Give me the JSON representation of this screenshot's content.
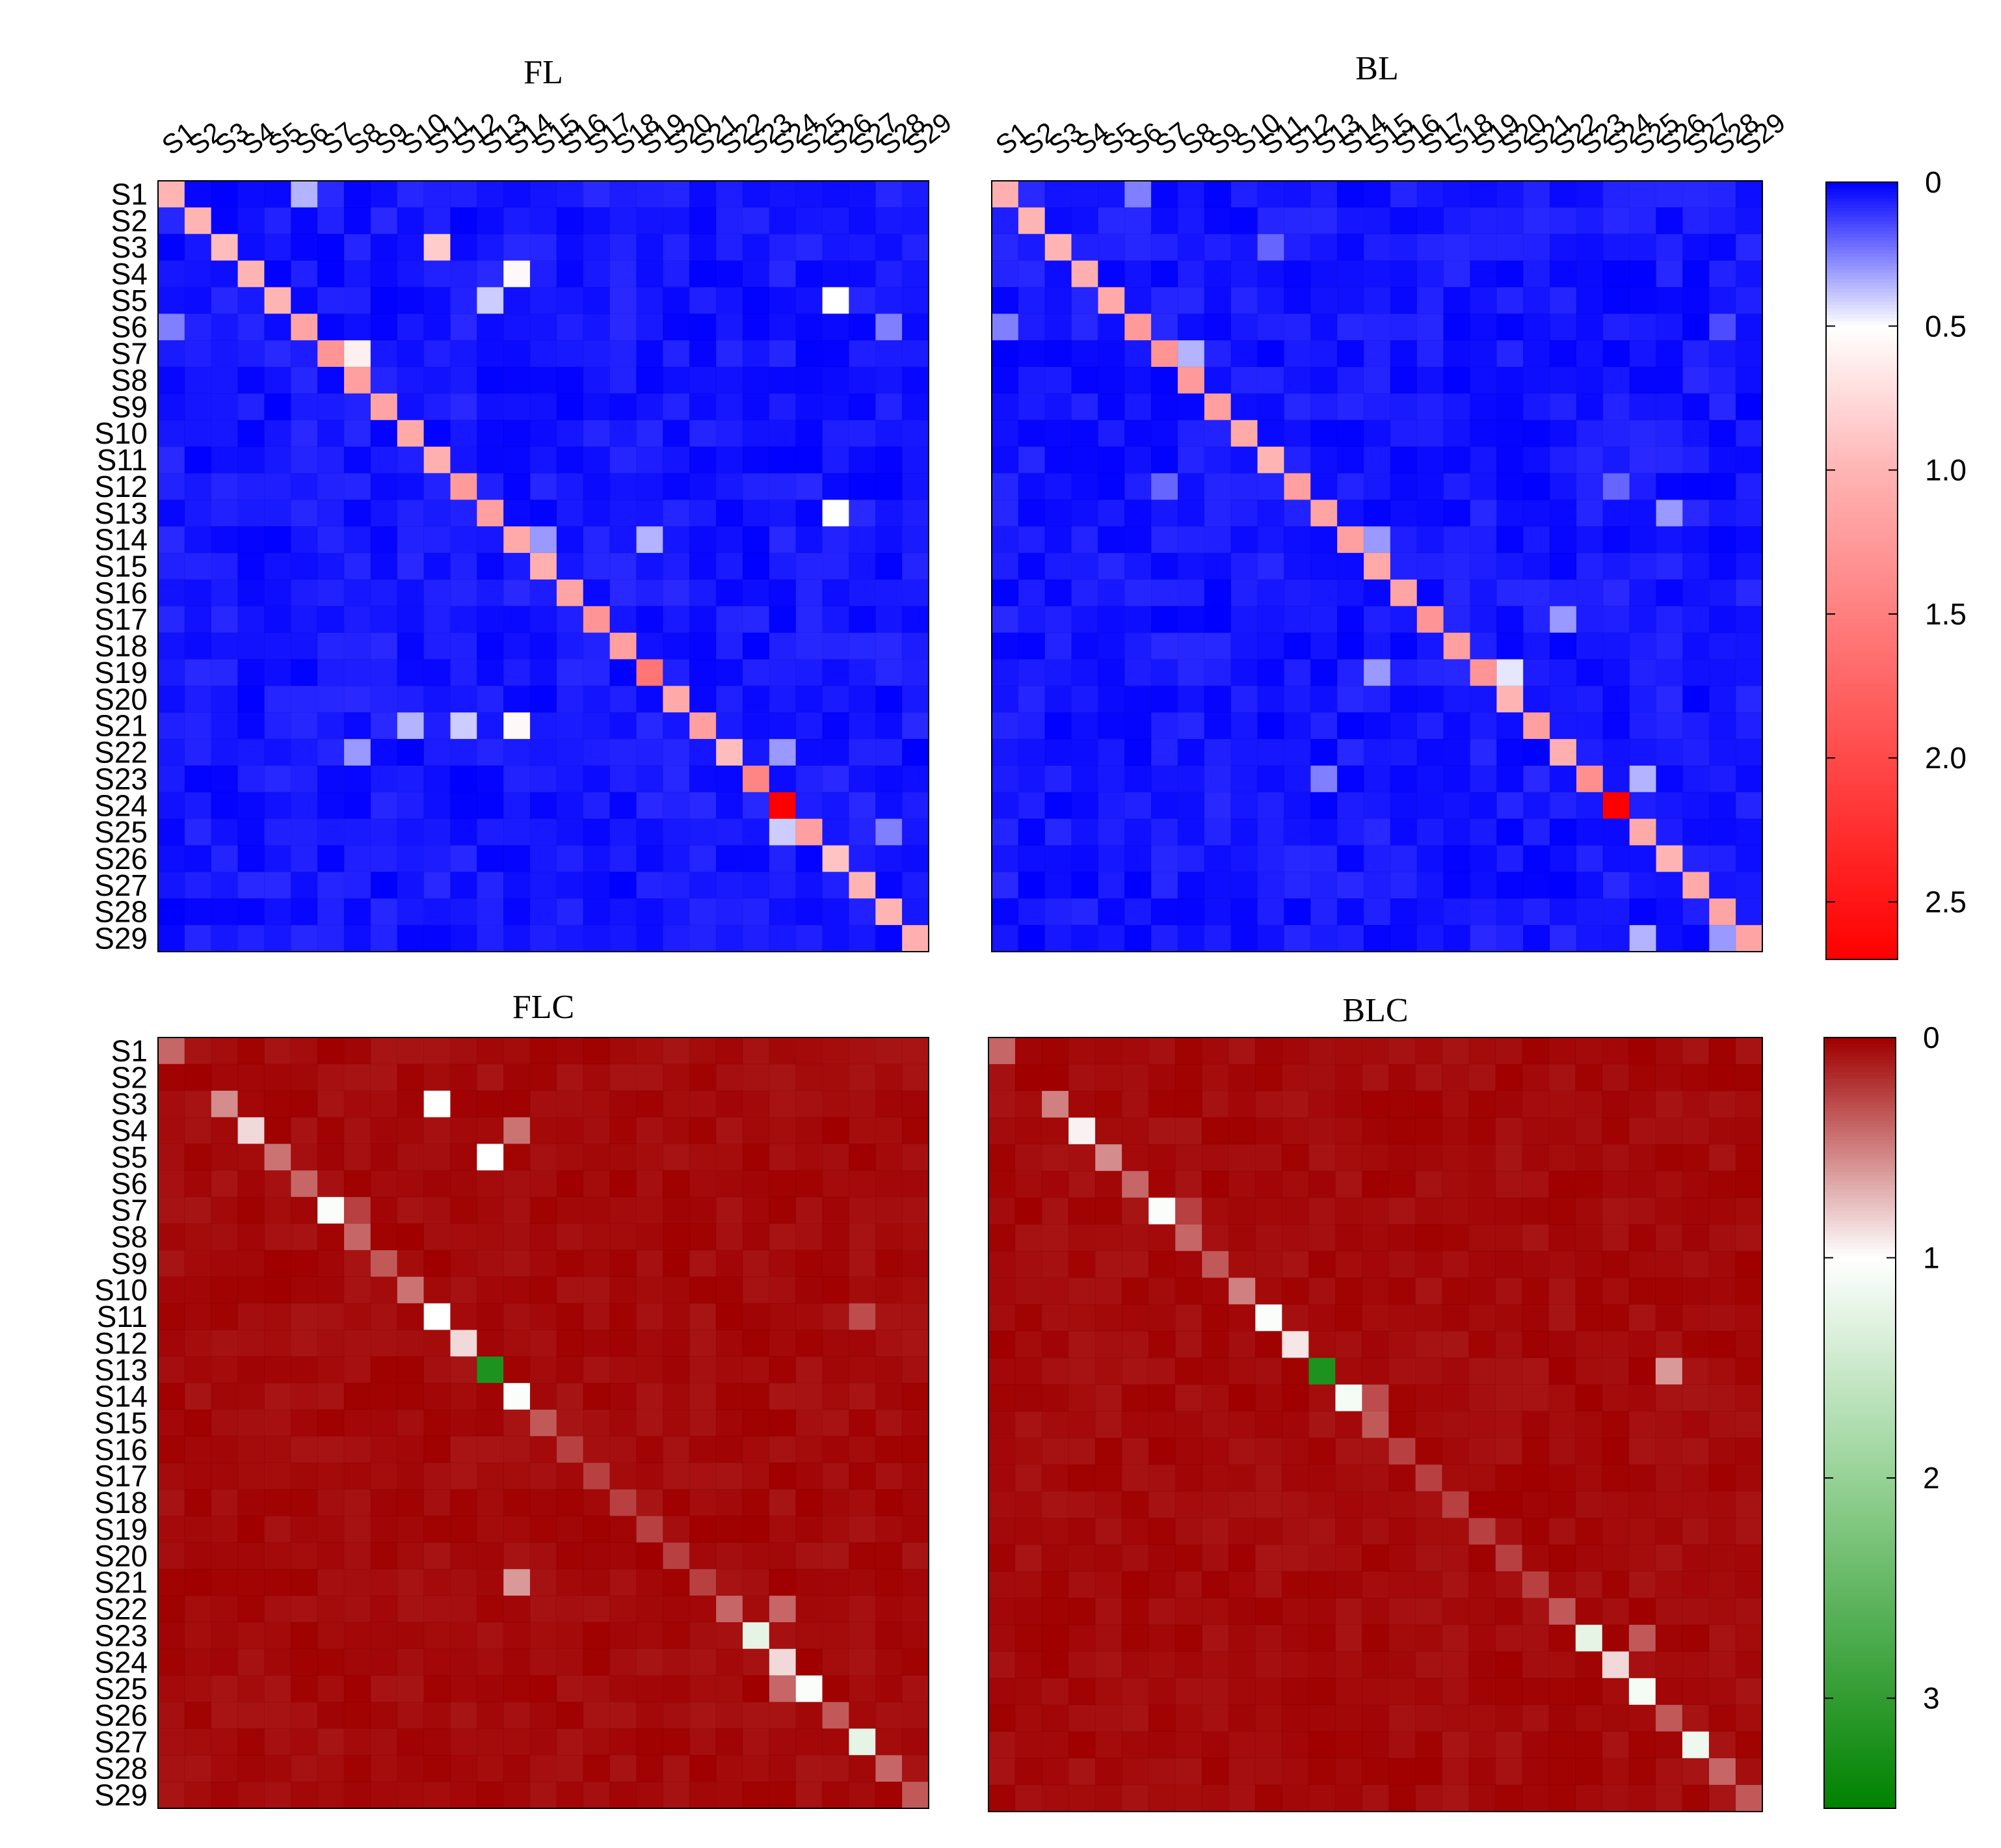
{
  "chart_data": [
    {
      "type": "heatmap",
      "title": "FL",
      "labels": [
        "S1",
        "S2",
        "S3",
        "S4",
        "S5",
        "S6",
        "S7",
        "S8",
        "S9",
        "S10",
        "S11",
        "S12",
        "S13",
        "S14",
        "S15",
        "S16",
        "S17",
        "S18",
        "S19",
        "S20",
        "S21",
        "S22",
        "S23",
        "S24",
        "S25",
        "S26",
        "S27",
        "S28",
        "S29"
      ],
      "show_x_labels": true,
      "colormap": "blue-white-red",
      "range": [
        0,
        2.7
      ],
      "diagonal": [
        1.0,
        1.0,
        0.95,
        1.0,
        1.0,
        1.15,
        1.3,
        1.2,
        1.15,
        1.1,
        1.05,
        1.25,
        1.2,
        1.1,
        1.05,
        1.15,
        1.3,
        1.2,
        1.6,
        1.1,
        1.2,
        0.95,
        1.45,
        2.7,
        1.2,
        0.9,
        1.0,
        1.0,
        1.05
      ],
      "highlights": [
        {
          "row": "S1",
          "col": "S6",
          "value": 0.35
        },
        {
          "row": "S3",
          "col": "S11",
          "value": 0.85
        },
        {
          "row": "S4",
          "col": "S14",
          "value": 0.55
        },
        {
          "row": "S5",
          "col": "S13",
          "value": 0.4
        },
        {
          "row": "S5",
          "col": "S26",
          "value": 0.5
        },
        {
          "row": "S6",
          "col": "S1",
          "value": 0.25
        },
        {
          "row": "S6",
          "col": "S28",
          "value": 0.25
        },
        {
          "row": "S7",
          "col": "S8",
          "value": 0.6
        },
        {
          "row": "S13",
          "col": "S26",
          "value": 0.5
        },
        {
          "row": "S14",
          "col": "S15",
          "value": 0.3
        },
        {
          "row": "S14",
          "col": "S19",
          "value": 0.35
        },
        {
          "row": "S21",
          "col": "S10",
          "value": 0.35
        },
        {
          "row": "S21",
          "col": "S12",
          "value": 0.4
        },
        {
          "row": "S21",
          "col": "S14",
          "value": 0.55
        },
        {
          "row": "S22",
          "col": "S8",
          "value": 0.3
        },
        {
          "row": "S22",
          "col": "S24",
          "value": 0.3
        },
        {
          "row": "S25",
          "col": "S24",
          "value": 0.4
        },
        {
          "row": "S25",
          "col": "S28",
          "value": 0.25
        }
      ],
      "background": 0.0
    },
    {
      "type": "heatmap",
      "title": "BL",
      "labels": [
        "S1",
        "S2",
        "S3",
        "S4",
        "S5",
        "S6",
        "S7",
        "S8",
        "S9",
        "S10",
        "S11",
        "S12",
        "S13",
        "S14",
        "S15",
        "S16",
        "S17",
        "S18",
        "S19",
        "S20",
        "S21",
        "S22",
        "S23",
        "S24",
        "S25",
        "S26",
        "S27",
        "S28",
        "S29"
      ],
      "show_x_labels": true,
      "colormap": "blue-white-red",
      "range": [
        0,
        2.7
      ],
      "diagonal": [
        1.05,
        1.0,
        1.0,
        1.05,
        1.1,
        1.25,
        1.3,
        1.25,
        1.2,
        1.1,
        1.0,
        1.2,
        1.15,
        1.2,
        1.1,
        1.15,
        1.3,
        1.2,
        1.3,
        1.0,
        1.2,
        1.05,
        1.35,
        2.7,
        1.1,
        1.0,
        1.1,
        1.15,
        1.15
      ],
      "highlights": [
        {
          "row": "S1",
          "col": "S6",
          "value": 0.25
        },
        {
          "row": "S3",
          "col": "S11",
          "value": 0.2
        },
        {
          "row": "S6",
          "col": "S1",
          "value": 0.25
        },
        {
          "row": "S6",
          "col": "S28",
          "value": 0.15
        },
        {
          "row": "S7",
          "col": "S8",
          "value": 0.35
        },
        {
          "row": "S12",
          "col": "S7",
          "value": 0.2
        },
        {
          "row": "S12",
          "col": "S24",
          "value": 0.2
        },
        {
          "row": "S13",
          "col": "S26",
          "value": 0.3
        },
        {
          "row": "S14",
          "col": "S15",
          "value": 0.3
        },
        {
          "row": "S17",
          "col": "S22",
          "value": 0.3
        },
        {
          "row": "S19",
          "col": "S15",
          "value": 0.3
        },
        {
          "row": "S19",
          "col": "S20",
          "value": 0.45
        },
        {
          "row": "S23",
          "col": "S13",
          "value": 0.25
        },
        {
          "row": "S23",
          "col": "S25",
          "value": 0.35
        },
        {
          "row": "S29",
          "col": "S25",
          "value": 0.35
        },
        {
          "row": "S29",
          "col": "S28",
          "value": 0.3
        }
      ],
      "background": 0.0
    },
    {
      "type": "heatmap",
      "title": "FLC",
      "labels": [
        "S1",
        "S2",
        "S3",
        "S4",
        "S5",
        "S6",
        "S7",
        "S8",
        "S9",
        "S10",
        "S11",
        "S12",
        "S13",
        "S14",
        "S15",
        "S16",
        "S17",
        "S18",
        "S19",
        "S20",
        "S21",
        "S22",
        "S23",
        "S24",
        "S25",
        "S26",
        "S27",
        "S28",
        "S29"
      ],
      "show_x_labels": false,
      "colormap": "red-white-green",
      "range": [
        0,
        3.5
      ],
      "diagonal": [
        0.4,
        0.0,
        0.55,
        0.85,
        0.45,
        0.4,
        1.05,
        0.4,
        0.35,
        0.45,
        1.0,
        0.85,
        3.2,
        1.05,
        0.35,
        0.25,
        0.25,
        0.25,
        0.25,
        0.25,
        0.25,
        0.4,
        1.25,
        0.85,
        1.05,
        0.35,
        1.25,
        0.4,
        0.35
      ],
      "highlights": [
        {
          "row": "S3",
          "col": "S11",
          "value": 1.0
        },
        {
          "row": "S4",
          "col": "S14",
          "value": 0.45
        },
        {
          "row": "S5",
          "col": "S13",
          "value": 1.0
        },
        {
          "row": "S7",
          "col": "S8",
          "value": 0.25
        },
        {
          "row": "S11",
          "col": "S27",
          "value": 0.3
        },
        {
          "row": "S21",
          "col": "S14",
          "value": 0.6
        },
        {
          "row": "S22",
          "col": "S24",
          "value": 0.4
        },
        {
          "row": "S25",
          "col": "S24",
          "value": 0.4
        }
      ],
      "background": 0.0
    },
    {
      "type": "heatmap",
      "title": "BLC",
      "labels": [
        "S1",
        "S2",
        "S3",
        "S4",
        "S5",
        "S6",
        "S7",
        "S8",
        "S9",
        "S10",
        "S11",
        "S12",
        "S13",
        "S14",
        "S15",
        "S16",
        "S17",
        "S18",
        "S19",
        "S20",
        "S21",
        "S22",
        "S23",
        "S24",
        "S25",
        "S26",
        "S27",
        "S28",
        "S29"
      ],
      "show_x_labels": false,
      "colormap": "red-white-green",
      "range": [
        0,
        3.5
      ],
      "diagonal": [
        0.4,
        0.0,
        0.5,
        0.95,
        0.55,
        0.4,
        1.05,
        0.4,
        0.35,
        0.5,
        1.05,
        0.9,
        3.2,
        1.1,
        0.35,
        0.25,
        0.25,
        0.25,
        0.25,
        0.25,
        0.25,
        0.35,
        1.25,
        0.85,
        1.1,
        0.35,
        1.15,
        0.4,
        0.35
      ],
      "highlights": [
        {
          "row": "S7",
          "col": "S8",
          "value": 0.25
        },
        {
          "row": "S13",
          "col": "S26",
          "value": 0.6
        },
        {
          "row": "S14",
          "col": "S15",
          "value": 0.3
        },
        {
          "row": "S23",
          "col": "S25",
          "value": 0.35
        }
      ],
      "background": 0.0
    }
  ],
  "colorbars": [
    {
      "name": "blue-white-red",
      "ticks": [
        "0",
        "0.5",
        "1.0",
        "1.5",
        "2.0",
        "2.5"
      ],
      "tick_values": [
        0,
        0.5,
        1.0,
        1.5,
        2.0,
        2.5
      ],
      "range": [
        0,
        2.7
      ]
    },
    {
      "name": "red-white-green",
      "ticks": [
        "0",
        "1",
        "2",
        "3"
      ],
      "tick_values": [
        0,
        1,
        2,
        3
      ],
      "range": [
        0,
        3.5
      ]
    }
  ]
}
